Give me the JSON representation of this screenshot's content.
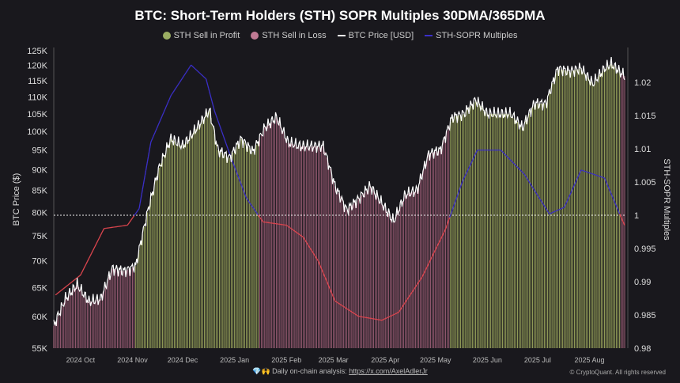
{
  "chart_data": {
    "type": "bar+line",
    "title": "BTC: Short-Term Holders (STH) SOPR Multiples 30DMA/365DMA",
    "legend": [
      {
        "name": "STH Sell in Profit",
        "color": "#9bae63",
        "kind": "dot"
      },
      {
        "name": "STH Sell in Loss",
        "color": "#c07a94",
        "kind": "dot"
      },
      {
        "name": "BTC Price [USD]",
        "color": "#ffffff",
        "kind": "line"
      },
      {
        "name": "STH-SOPR Multiples",
        "color": "#3b2fc9",
        "kind": "line"
      }
    ],
    "legend_position": "top-center",
    "ylabel_left": "BTC Price ($)",
    "ylabel_right": "STH-SOPR Multiples",
    "y_left_scale": "log",
    "y_left_range": [
      55000,
      125000
    ],
    "y_left_ticks": [
      "125K",
      "120K",
      "115K",
      "110K",
      "105K",
      "100K",
      "95K",
      "90K",
      "85K",
      "80K",
      "75K",
      "70K",
      "65K",
      "60K",
      "55K"
    ],
    "y_right_range": [
      0.98,
      1.022
    ],
    "y_right_ticks": [
      "1.02",
      "1.015",
      "1.01",
      "1.005",
      "1",
      "0.995",
      "0.99",
      "0.985",
      "0.98"
    ],
    "x_range": [
      "2024-09-15",
      "2025-08-22"
    ],
    "x_ticks": [
      {
        "label": "2024 Oct",
        "date": "2024-10-01"
      },
      {
        "label": "2024 Nov",
        "date": "2024-11-01"
      },
      {
        "label": "2024 Dec",
        "date": "2024-12-01"
      },
      {
        "label": "2025 Jan",
        "date": "2025-01-01"
      },
      {
        "label": "2025 Feb",
        "date": "2025-02-01"
      },
      {
        "label": "2025 Mar",
        "date": "2025-03-01"
      },
      {
        "label": "2025 Apr",
        "date": "2025-04-01"
      },
      {
        "label": "2025 May",
        "date": "2025-05-01"
      },
      {
        "label": "2025 Jun",
        "date": "2025-06-01"
      },
      {
        "label": "2025 Jul",
        "date": "2025-07-01"
      },
      {
        "label": "2025 Aug",
        "date": "2025-08-01"
      }
    ],
    "reference_line": 1,
    "price": [
      [
        "2024-09-15",
        58500
      ],
      [
        "2024-09-22",
        63000
      ],
      [
        "2024-09-29",
        65500
      ],
      [
        "2024-10-06",
        62500
      ],
      [
        "2024-10-13",
        63000
      ],
      [
        "2024-10-20",
        68500
      ],
      [
        "2024-10-27",
        68000
      ],
      [
        "2024-11-03",
        69000
      ],
      [
        "2024-11-10",
        80000
      ],
      [
        "2024-11-17",
        90500
      ],
      [
        "2024-11-24",
        98000
      ],
      [
        "2024-12-01",
        96000
      ],
      [
        "2024-12-08",
        100000
      ],
      [
        "2024-12-17",
        106000
      ],
      [
        "2024-12-22",
        95000
      ],
      [
        "2024-12-29",
        93000
      ],
      [
        "2025-01-05",
        98000
      ],
      [
        "2025-01-12",
        94500
      ],
      [
        "2025-01-19",
        101000
      ],
      [
        "2025-01-26",
        104000
      ],
      [
        "2025-02-02",
        97000
      ],
      [
        "2025-02-09",
        96000
      ],
      [
        "2025-02-16",
        96000
      ],
      [
        "2025-02-23",
        96000
      ],
      [
        "2025-03-02",
        86000
      ],
      [
        "2025-03-09",
        80500
      ],
      [
        "2025-03-16",
        83000
      ],
      [
        "2025-03-23",
        86000
      ],
      [
        "2025-03-30",
        82000
      ],
      [
        "2025-04-06",
        78000
      ],
      [
        "2025-04-13",
        84000
      ],
      [
        "2025-04-20",
        85000
      ],
      [
        "2025-04-27",
        94000
      ],
      [
        "2025-05-04",
        95000
      ],
      [
        "2025-05-11",
        104000
      ],
      [
        "2025-05-18",
        105000
      ],
      [
        "2025-05-25",
        109000
      ],
      [
        "2025-06-01",
        105000
      ],
      [
        "2025-06-08",
        105000
      ],
      [
        "2025-06-15",
        105000
      ],
      [
        "2025-06-22",
        101000
      ],
      [
        "2025-06-29",
        108000
      ],
      [
        "2025-07-06",
        108000
      ],
      [
        "2025-07-13",
        119000
      ],
      [
        "2025-07-20",
        118000
      ],
      [
        "2025-07-27",
        119000
      ],
      [
        "2025-08-03",
        114000
      ],
      [
        "2025-08-10",
        119000
      ],
      [
        "2025-08-14",
        120500
      ],
      [
        "2025-08-22",
        116500
      ]
    ],
    "sopr": [
      [
        "2024-09-16",
        0.988
      ],
      [
        "2024-10-01",
        0.991
      ],
      [
        "2024-10-15",
        0.998
      ],
      [
        "2024-10-29",
        0.9985
      ],
      [
        "2024-11-05",
        1.001
      ],
      [
        "2024-11-12",
        1.011
      ],
      [
        "2024-11-24",
        1.018
      ],
      [
        "2024-12-06",
        1.0226
      ],
      [
        "2024-12-15",
        1.0205
      ],
      [
        "2024-12-20",
        1.0157
      ],
      [
        "2024-12-30",
        1.0086
      ],
      [
        "2025-01-08",
        1.0026
      ],
      [
        "2025-01-18",
        0.999
      ],
      [
        "2025-02-01",
        0.9985
      ],
      [
        "2025-02-11",
        0.9967
      ],
      [
        "2025-02-20",
        0.9931
      ],
      [
        "2025-03-02",
        0.9871
      ],
      [
        "2025-03-16",
        0.9848
      ],
      [
        "2025-03-30",
        0.9842
      ],
      [
        "2025-04-09",
        0.9854
      ],
      [
        "2025-04-23",
        0.9907
      ],
      [
        "2025-05-07",
        0.9979
      ],
      [
        "2025-05-17",
        1.005
      ],
      [
        "2025-05-26",
        1.0098
      ],
      [
        "2025-06-09",
        1.0098
      ],
      [
        "2025-06-23",
        1.0062
      ],
      [
        "2025-07-08",
        1.0002
      ],
      [
        "2025-07-17",
        1.0012
      ],
      [
        "2025-07-27",
        1.0068
      ],
      [
        "2025-08-10",
        1.0056
      ],
      [
        "2025-08-19",
        1.0002
      ],
      [
        "2025-08-22",
        0.9985
      ]
    ]
  },
  "footer": {
    "icons": "💎🙌",
    "text": "Daily on-chain analysis: ",
    "link": "https://x.com/AxelAdlerJr",
    "copyright": "© CryptoQuant. All rights reserved"
  }
}
